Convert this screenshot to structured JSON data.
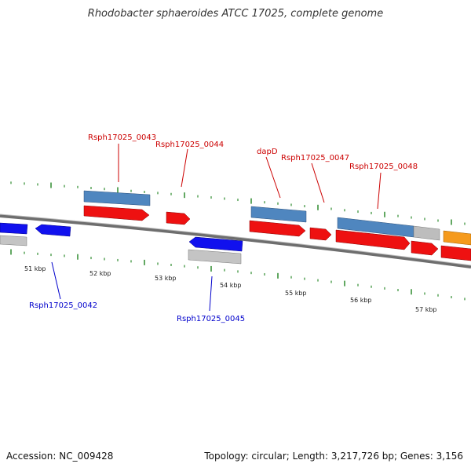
{
  "title": "Rhodobacter sphaeroides ATCC 17025, complete genome",
  "footer": {
    "accession": "Accession: NC_009428",
    "summary": "Topology: circular; Length: 3,217,726 bp; Genes: 3,156"
  },
  "colors": {
    "backbone": "#7a7a7a",
    "tick": "#2e8b2e",
    "cds_forward": "#ee1111",
    "cds_reverse": "#1111ee",
    "gene_forward": "#4f86bf",
    "gene_reverse": "#bdbdbd",
    "orange_feature": "#f59a1c",
    "label_forward": "#cc0000",
    "label_reverse": "#0000cc"
  },
  "scale_labels": [
    "51 kbp",
    "52 kbp",
    "53 kbp",
    "54 kbp",
    "55 kbp",
    "56 kbp",
    "57 kbp"
  ],
  "gene_labels": {
    "forward": [
      "Rsph17025_0043",
      "Rsph17025_0044",
      "dapD",
      "Rsph17025_0047",
      "Rsph17025_0048"
    ],
    "reverse": [
      "Rsph17025_0042",
      "Rsph17025_0045"
    ]
  }
}
